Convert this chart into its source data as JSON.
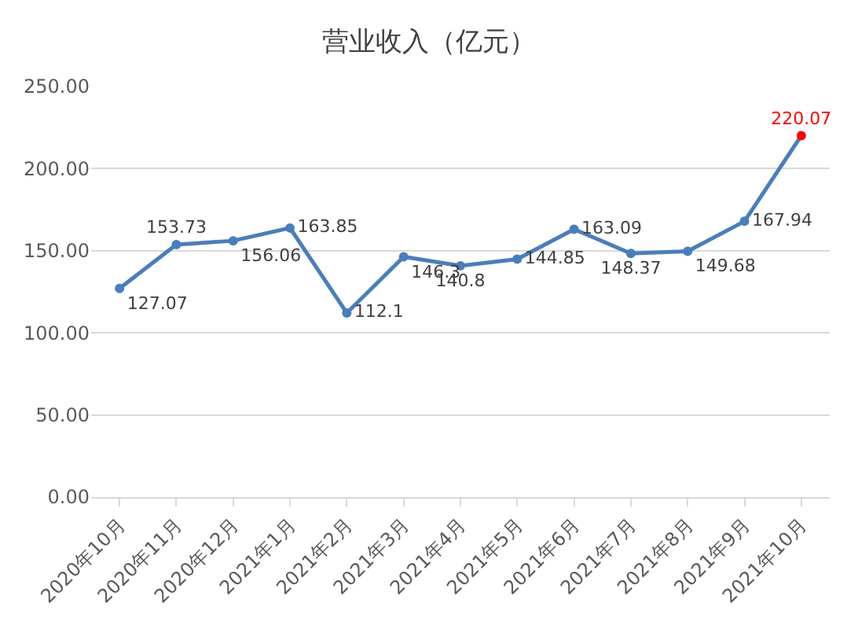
{
  "chart_data": {
    "type": "line",
    "title": "营业收入（亿元）",
    "categories": [
      "2020年10月",
      "2020年11月",
      "2020年12月",
      "2021年1月",
      "2021年2月",
      "2021年3月",
      "2021年4月",
      "2021年5月",
      "2021年6月",
      "2021年7月",
      "2021年8月",
      "2021年9月",
      "2021年10月"
    ],
    "series": [
      {
        "color": "#4a7ebb",
        "values": [
          127.07,
          153.73,
          156.06,
          163.85,
          112.1,
          146.3,
          140.8,
          144.85,
          163.09,
          148.37,
          149.68,
          167.94,
          220.07
        ],
        "colors": [
          "#4a7ebb",
          "#4a7ebb",
          "#4a7ebb",
          "#4a7ebb",
          "#4a7ebb",
          "#4a7ebb",
          "#4a7ebb",
          "#4a7ebb",
          "#4a7ebb",
          "#4a7ebb",
          "#4a7ebb",
          "#4a7ebb",
          "#ff0000"
        ]
      }
    ],
    "ylim": [
      0,
      250
    ],
    "yticks": [
      {
        "value": 0,
        "label": "0.00"
      },
      {
        "value": 50,
        "label": "50.00"
      },
      {
        "value": 100,
        "label": "100.00"
      },
      {
        "value": 150,
        "label": "150.00"
      },
      {
        "value": 200,
        "label": "200.00"
      },
      {
        "value": 250,
        "label": "250.00"
      }
    ],
    "grid": "y",
    "marker": "circle",
    "line_style": "solid",
    "data_labels": true
  }
}
